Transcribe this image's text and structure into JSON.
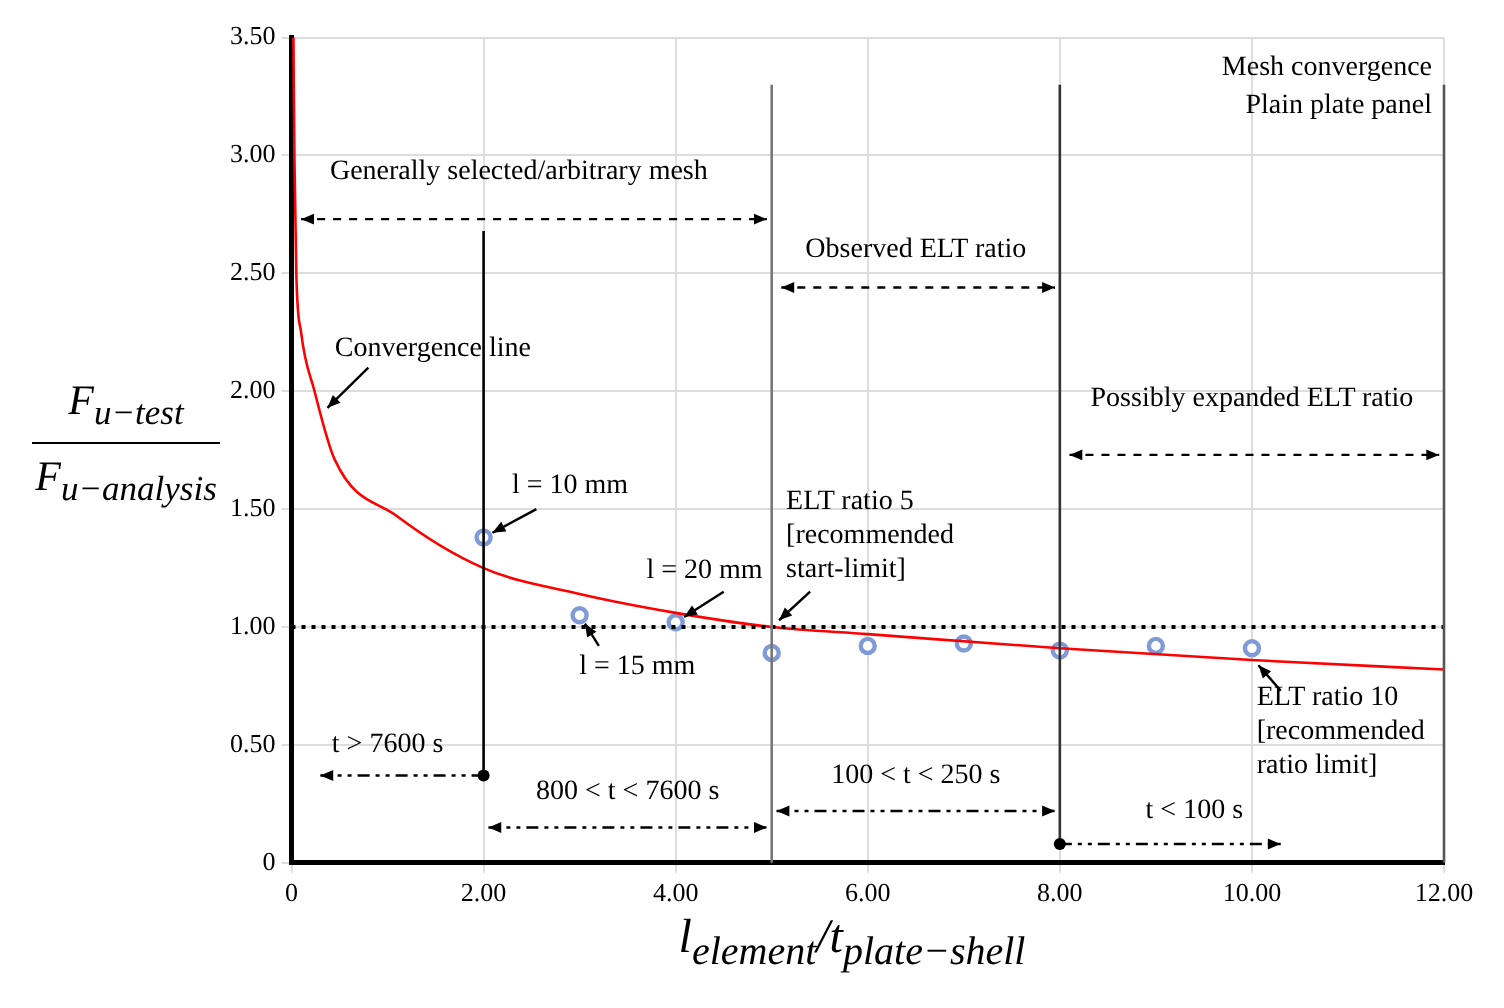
{
  "chart_data": {
    "type": "scatter",
    "title": "Mesh convergence",
    "subtitle": "Plain plate panel",
    "xlabel": "l$_{element}$/t$_{plate−shell}$",
    "ylabel": "F$_{u−test}$\nF$_{u−analysis}$",
    "xlim": [
      0,
      12
    ],
    "ylim": [
      0,
      3.5
    ],
    "xticks": [
      0,
      {
        "value": 2,
        "label": "2.00"
      },
      {
        "value": 4,
        "label": "4.00"
      },
      {
        "value": 6,
        "label": "6.00"
      },
      {
        "value": 8,
        "label": "8.00"
      },
      {
        "value": 10,
        "label": "10.00"
      },
      {
        "value": 12,
        "label": "12.00"
      }
    ],
    "yticks": [
      0,
      {
        "value": 0.5,
        "label": "0.50"
      },
      {
        "value": 1,
        "label": "1.00"
      },
      {
        "value": 1.5,
        "label": "1.50"
      },
      {
        "value": 2,
        "label": "2.00"
      },
      {
        "value": 2.5,
        "label": "2.50"
      },
      {
        "value": 3,
        "label": "3.00"
      },
      {
        "value": 3.5,
        "label": "3.50"
      }
    ],
    "grid": true,
    "series": [
      {
        "type": "line",
        "color": "#ff0000",
        "marker": "none",
        "line_style": "solid",
        "x": [
          0.02,
          0.03,
          0.05,
          0.1,
          0.24,
          0.45,
          1.1,
          2,
          3,
          4,
          5,
          6,
          8,
          10,
          12
        ],
        "values": [
          3.5,
          3.0,
          2.5,
          2.25,
          2.0,
          1.71,
          1.47,
          1.25,
          1.14,
          1.06,
          1.0,
          0.97,
          0.91,
          0.86,
          0.82
        ]
      },
      {
        "type": "scatter",
        "color": "#7f9ad6",
        "marker": "circle",
        "x": [
          2,
          3,
          4,
          5,
          6,
          7,
          8,
          9,
          10
        ],
        "values": [
          1.38,
          1.05,
          1.02,
          0.89,
          0.92,
          0.93,
          0.9,
          0.92,
          0.91
        ]
      }
    ],
    "ref_lines": [
      {
        "axis": "y",
        "value": 1,
        "color": "#000000",
        "line_style": "dotted"
      },
      {
        "axis": "x",
        "value": 2,
        "color": "#000000",
        "line_style": "solid"
      },
      {
        "axis": "x",
        "value": 5,
        "color": "#777777",
        "line_style": "solid"
      },
      {
        "axis": "x",
        "value": 8,
        "color": "#333333",
        "line_style": "solid"
      },
      {
        "axis": "x",
        "value": 12,
        "color": "#555555",
        "line_style": "solid"
      }
    ],
    "annotations": [
      "Generally selected/arbitrary mesh",
      "Observed ELT ratio",
      "Possibly expanded ELT ratio",
      "t > 7600 s",
      "800 < t < 7600 s",
      "100 < t < 250 s",
      "t < 100 s",
      {
        "text": "l = 10 mm",
        "x": 2,
        "y": 1.38
      },
      {
        "text": "l = 20 mm",
        "x": 4,
        "y": 1.02
      },
      {
        "text": "l = 15 mm",
        "x": 3,
        "y": 1.05
      },
      {
        "text": "ELT ratio 5\n[recommended\nstart-limit]",
        "x": 5,
        "y": 1.0
      },
      {
        "text": "ELT ratio 10\n[recommended\nratio limit]",
        "x": 10,
        "y": 0.87
      },
      {
        "text": "Convergence line",
        "x": 0.3,
        "y": 1.9
      }
    ]
  }
}
